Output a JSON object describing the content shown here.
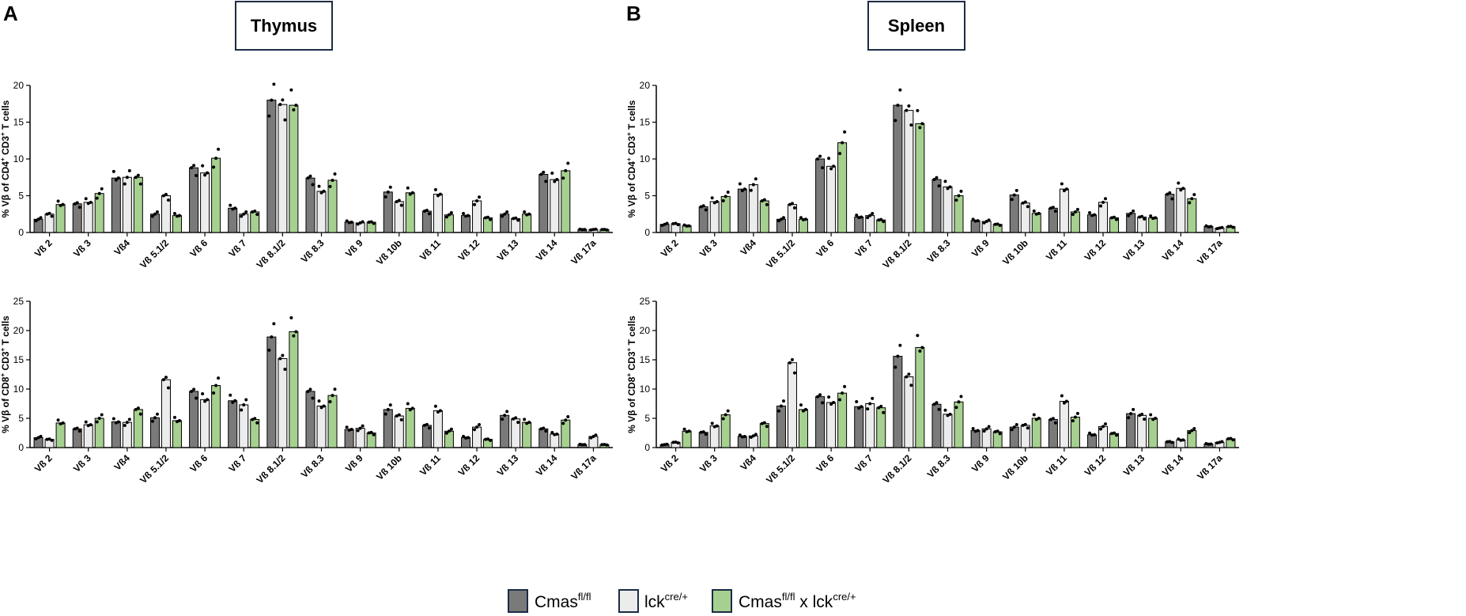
{
  "panels": {
    "A": {
      "letter": "A",
      "title": "Thymus"
    },
    "B": {
      "letter": "B",
      "title": "Spleen"
    }
  },
  "axis_titles": {
    "cd4": {
      "pre": "% Vβ of CD4",
      "sup": "+",
      "mid": " CD3",
      "sup2": "+",
      "post": " T cells"
    },
    "cd8": {
      "pre": "% Vβ of CD8",
      "sup": "+",
      "mid": " CD3",
      "sup2": "+",
      "post": " T cells"
    }
  },
  "colors": {
    "series": [
      "#7a7a7a",
      "#ececec",
      "#a6d08f"
    ],
    "stroke": "#000000"
  },
  "legend": [
    {
      "name": "Cmas",
      "sup": "fl/fl",
      "suffix": "",
      "sup2": ""
    },
    {
      "name": "lck",
      "sup": "cre/+",
      "suffix": "",
      "sup2": ""
    },
    {
      "name": "Cmas",
      "sup": "fl/fl",
      "suffix": " x lck",
      "sup2": "cre/+"
    }
  ],
  "chart_data": [
    {
      "id": "thymus-cd4",
      "type": "bar",
      "panel": "A",
      "categories": [
        "Vß 2",
        "Vß 3",
        "Vß4",
        "Vß 5.1/2",
        "Vß 6",
        "Vß 7",
        "Vß 8.1/2",
        "Vß 8.3",
        "Vß 9",
        "Vß 10b",
        "Vß 11",
        "Vß 12",
        "Vß 13",
        "Vß 14",
        "Vß 17a"
      ],
      "ylim": [
        0,
        20
      ],
      "yticks": [
        0,
        5,
        10,
        15,
        20
      ],
      "ylabel_key": "cd4",
      "series": [
        {
          "name": "Cmasfl/fl",
          "values": [
            1.8,
            3.9,
            7.4,
            2.5,
            8.8,
            3.3,
            18.0,
            7.4,
            1.4,
            5.5,
            2.9,
            2.3,
            2.5,
            7.9,
            0.4
          ]
        },
        {
          "name": "lckcre/+",
          "values": [
            2.5,
            4.1,
            7.5,
            5.0,
            8.1,
            2.5,
            17.4,
            5.6,
            1.3,
            4.2,
            5.2,
            4.3,
            1.9,
            7.2,
            0.4
          ]
        },
        {
          "name": "Cmasfl/fl x lckcre/+",
          "values": [
            3.8,
            5.3,
            7.5,
            2.3,
            10.1,
            2.8,
            17.3,
            7.1,
            1.4,
            5.4,
            2.4,
            2.0,
            2.5,
            8.4,
            0.4
          ]
        }
      ]
    },
    {
      "id": "thymus-cd8",
      "type": "bar",
      "panel": "A",
      "categories": [
        "Vß 2",
        "Vß 3",
        "Vß4",
        "Vß 5.1/2",
        "Vß 6",
        "Vß 7",
        "Vß 8.1/2",
        "Vß 8.3",
        "Vß 9",
        "Vß 10b",
        "Vß 11",
        "Vß 12",
        "Vß 13",
        "Vß 14",
        "Vß 17a"
      ],
      "ylim": [
        0,
        25
      ],
      "yticks": [
        0,
        5,
        10,
        15,
        20,
        25
      ],
      "ylabel_key": "cd8",
      "series": [
        {
          "name": "Cmasfl/fl",
          "values": [
            1.7,
            3.2,
            4.4,
            5.1,
            9.6,
            8.0,
            18.9,
            9.6,
            3.1,
            6.5,
            3.8,
            1.7,
            5.5,
            3.2,
            0.5
          ]
        },
        {
          "name": "lckcre/+",
          "values": [
            1.4,
            3.9,
            4.3,
            11.6,
            8.2,
            7.3,
            15.2,
            7.1,
            3.3,
            5.4,
            6.3,
            3.5,
            4.9,
            2.3,
            1.9
          ]
        },
        {
          "name": "Cmasfl/fl x lckcre/+",
          "values": [
            4.2,
            5.0,
            6.5,
            4.6,
            10.6,
            4.8,
            19.8,
            8.9,
            2.5,
            6.7,
            2.8,
            1.4,
            4.3,
            4.7,
            0.5
          ]
        }
      ]
    },
    {
      "id": "spleen-cd4",
      "type": "bar",
      "panel": "B",
      "categories": [
        "Vß 2",
        "Vß 3",
        "Vß4",
        "Vß 5.1/2",
        "Vß 6",
        "Vß 7",
        "Vß 8.1/2",
        "Vß 8.3",
        "Vß 9",
        "Vß 10b",
        "Vß 11",
        "Vß 12",
        "Vß 13",
        "Vß 14",
        "Vß 17a"
      ],
      "ylim": [
        0,
        20
      ],
      "yticks": [
        0,
        5,
        10,
        15,
        20
      ],
      "ylabel_key": "cd4",
      "series": [
        {
          "name": "Cmasfl/fl",
          "values": [
            1.1,
            3.5,
            5.9,
            1.8,
            10.0,
            2.1,
            17.3,
            7.2,
            1.6,
            5.1,
            3.3,
            2.4,
            2.6,
            5.2,
            0.8
          ]
        },
        {
          "name": "lckcre/+",
          "values": [
            1.2,
            4.2,
            6.5,
            3.8,
            9.0,
            2.3,
            16.6,
            6.2,
            1.5,
            4.0,
            5.9,
            4.1,
            2.1,
            6.0,
            0.6
          ]
        },
        {
          "name": "Cmasfl/fl x lckcre/+",
          "values": [
            0.9,
            4.9,
            4.3,
            1.8,
            12.2,
            1.7,
            14.8,
            5.0,
            1.1,
            2.6,
            2.8,
            2.0,
            2.0,
            4.6,
            0.8
          ]
        }
      ]
    },
    {
      "id": "spleen-cd8",
      "type": "bar",
      "panel": "B",
      "categories": [
        "Vß 2",
        "Vß 3",
        "Vß4",
        "Vß 5.1/2",
        "Vß 6",
        "Vß 7",
        "Vß 8.1/2",
        "Vß 8.3",
        "Vß 9",
        "Vß 10b",
        "Vß 11",
        "Vß 12",
        "Vß 13",
        "Vß 14",
        "Vß 17a"
      ],
      "ylim": [
        0,
        25
      ],
      "yticks": [
        0,
        5,
        10,
        15,
        20,
        25
      ],
      "ylabel_key": "cd8",
      "series": [
        {
          "name": "Cmasfl/fl",
          "values": [
            0.5,
            2.6,
            1.9,
            7.1,
            8.7,
            7.0,
            15.6,
            7.4,
            2.9,
            3.5,
            4.8,
            2.2,
            5.8,
            1.0,
            0.6
          ]
        },
        {
          "name": "lckcre/+",
          "values": [
            0.9,
            3.7,
            2.0,
            14.5,
            7.7,
            7.5,
            12.1,
            5.7,
            3.2,
            3.8,
            7.9,
            3.6,
            5.5,
            1.3,
            0.9
          ]
        },
        {
          "name": "Cmasfl/fl x lckcre/+",
          "values": [
            2.8,
            5.6,
            4.1,
            6.5,
            9.3,
            6.8,
            17.1,
            7.8,
            2.7,
            5.0,
            5.2,
            2.4,
            5.0,
            2.9,
            1.5
          ]
        }
      ]
    }
  ]
}
